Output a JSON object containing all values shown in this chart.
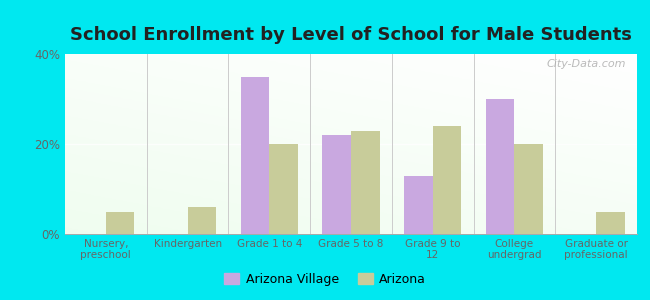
{
  "title": "School Enrollment by Level of School for Male Students",
  "categories": [
    "Nursery,\npreschool",
    "Kindergarten",
    "Grade 1 to 4",
    "Grade 5 to 8",
    "Grade 9 to\n12",
    "College\nundergrad",
    "Graduate or\nprofessional"
  ],
  "arizona_village": [
    0,
    0,
    35,
    22,
    13,
    30,
    0
  ],
  "arizona": [
    5,
    6,
    20,
    23,
    24,
    20,
    5
  ],
  "bar_color_village": "#c9a8e0",
  "bar_color_arizona": "#c8cc9a",
  "background_outer": "#00e8f0",
  "ylim": [
    0,
    40
  ],
  "yticks": [
    0,
    20,
    40
  ],
  "ytick_labels": [
    "0%",
    "20%",
    "40%"
  ],
  "legend_village": "Arizona Village",
  "legend_arizona": "Arizona",
  "bar_width": 0.35,
  "title_fontsize": 13,
  "tick_fontsize": 7.5
}
